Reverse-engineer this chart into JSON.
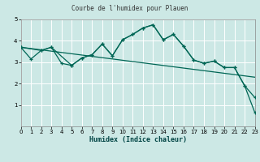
{
  "title": "Courbe de l'humidex pour Plauen",
  "xlabel": "Humidex (Indice chaleur)",
  "background_color": "#cce8e5",
  "grid_color": "#aad4cf",
  "line_color": "#006655",
  "xlim": [
    0,
    23
  ],
  "ylim": [
    0,
    5
  ],
  "xticks": [
    0,
    1,
    2,
    3,
    4,
    5,
    6,
    7,
    8,
    9,
    10,
    11,
    12,
    13,
    14,
    15,
    16,
    17,
    18,
    19,
    20,
    21,
    22,
    23
  ],
  "yticks": [
    1,
    2,
    3,
    4,
    5
  ],
  "line1_x": [
    0,
    1,
    2,
    3,
    4,
    5,
    6,
    7,
    8,
    9,
    10,
    11,
    12,
    13,
    14,
    15,
    16,
    17,
    18,
    19,
    20,
    21,
    22,
    23
  ],
  "line1_y": [
    3.7,
    3.15,
    3.55,
    3.7,
    2.95,
    2.85,
    3.2,
    3.35,
    3.85,
    3.3,
    4.05,
    4.3,
    4.6,
    4.75,
    4.05,
    4.3,
    3.75,
    3.1,
    2.95,
    3.05,
    2.75,
    2.75,
    1.9,
    1.35
  ],
  "line2_x": [
    0,
    23
  ],
  "line2_y": [
    3.7,
    2.3
  ],
  "line3_x": [
    0,
    2,
    3,
    5,
    6,
    7,
    8,
    9,
    10,
    11,
    12,
    13,
    14,
    15,
    16,
    17,
    18,
    19,
    20,
    21,
    22,
    23
  ],
  "line3_y": [
    3.7,
    3.55,
    3.7,
    2.85,
    3.2,
    3.35,
    3.85,
    3.3,
    4.05,
    4.3,
    4.6,
    4.75,
    4.05,
    4.3,
    3.75,
    3.1,
    2.95,
    3.05,
    2.75,
    2.75,
    1.9,
    0.65
  ]
}
